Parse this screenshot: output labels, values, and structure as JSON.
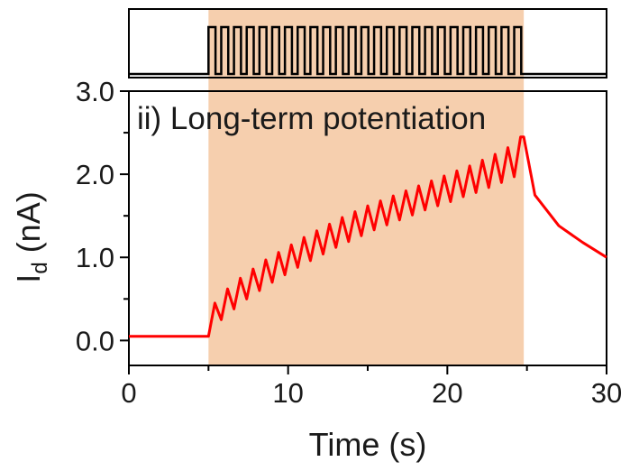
{
  "chart_data": {
    "type": "line",
    "panel_label": "ii) Long-term potentiation",
    "xlabel": "Time (s)",
    "ylabel_main": "I",
    "ylabel_sub": "d",
    "ylabel_unit": " (nA)",
    "xlim": [
      0,
      30
    ],
    "ylim": [
      -0.3,
      3.0
    ],
    "x_ticks": [
      "0",
      "10",
      "20",
      "30"
    ],
    "x_tick_values": [
      0,
      10,
      20,
      30
    ],
    "y_ticks": [
      "0.0",
      "1.0",
      "2.0",
      "3.0"
    ],
    "y_tick_values": [
      0,
      1,
      2,
      3
    ],
    "stimulus_window": [
      5.0,
      24.8
    ],
    "pulse_count": 25,
    "pulse_period_s": 0.8,
    "series": [
      {
        "color": "#ff0000",
        "description_points": {
          "baseline": 0.05,
          "peaks": [
            0.45,
            0.62,
            0.75,
            0.86,
            0.97,
            1.06,
            1.15,
            1.24,
            1.32,
            1.4,
            1.48,
            1.55,
            1.62,
            1.68,
            1.74,
            1.8,
            1.86,
            1.92,
            1.98,
            2.04,
            2.1,
            2.17,
            2.24,
            2.32,
            2.45
          ],
          "troughs": [
            0.25,
            0.38,
            0.5,
            0.6,
            0.7,
            0.79,
            0.88,
            0.96,
            1.04,
            1.12,
            1.19,
            1.26,
            1.33,
            1.39,
            1.45,
            1.51,
            1.57,
            1.62,
            1.67,
            1.73,
            1.78,
            1.84,
            1.9,
            1.97,
            2.05
          ],
          "decay": [
            [
              24.8,
              2.45
            ],
            [
              25.5,
              1.75
            ],
            [
              27,
              1.38
            ],
            [
              28.5,
              1.18
            ],
            [
              30,
              1.0
            ]
          ]
        }
      }
    ],
    "colors": {
      "highlight": "#f6cfae",
      "trace": "#ff0000",
      "axes": "#000000"
    }
  }
}
